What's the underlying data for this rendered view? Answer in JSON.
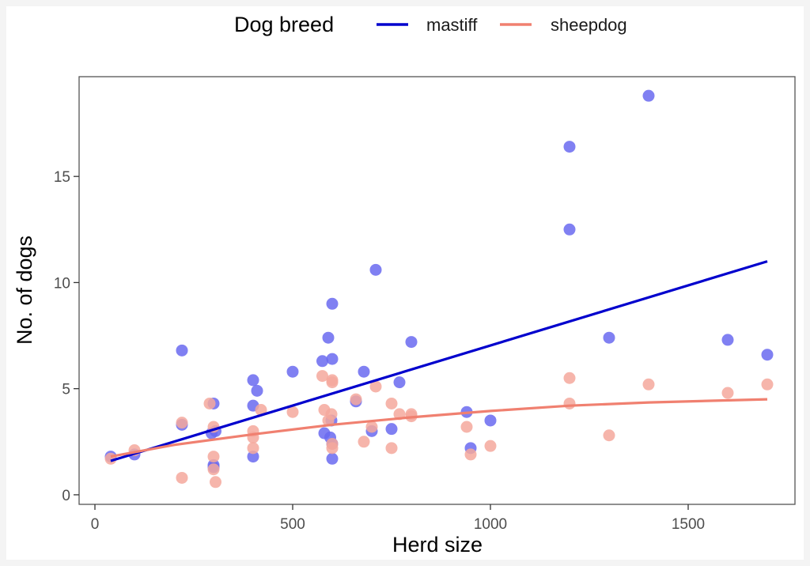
{
  "chart_data": {
    "type": "scatter",
    "title": "",
    "xlabel": "Herd size",
    "ylabel": "No. of dogs",
    "xlim": [
      -40,
      1770
    ],
    "ylim": [
      -0.45,
      19.7
    ],
    "xticks": [
      0,
      500,
      1000,
      1500
    ],
    "yticks": [
      0,
      5,
      10,
      15
    ],
    "xtick_labels": [
      "0",
      "500",
      "1000",
      "1500"
    ],
    "ytick_labels": [
      "0",
      "5",
      "10",
      "15"
    ],
    "grid": false,
    "legend": {
      "title": "Dog breed",
      "position": "top",
      "entries": [
        "mastiff",
        "sheepdog"
      ]
    },
    "series": [
      {
        "name": "mastiff",
        "color": "#0000cd",
        "point_color": "#6a6af0",
        "points": [
          [
            40,
            1.8
          ],
          [
            100,
            1.9
          ],
          [
            220,
            6.8
          ],
          [
            220,
            3.3
          ],
          [
            295,
            2.9
          ],
          [
            300,
            4.3
          ],
          [
            300,
            1.4
          ],
          [
            300,
            1.3
          ],
          [
            305,
            3.0
          ],
          [
            400,
            5.4
          ],
          [
            400,
            4.2
          ],
          [
            400,
            1.8
          ],
          [
            410,
            4.9
          ],
          [
            500,
            5.8
          ],
          [
            575,
            6.3
          ],
          [
            580,
            2.9
          ],
          [
            590,
            7.4
          ],
          [
            595,
            2.7
          ],
          [
            598,
            3.5
          ],
          [
            600,
            9.0
          ],
          [
            600,
            6.4
          ],
          [
            600,
            2.4
          ],
          [
            600,
            1.7
          ],
          [
            660,
            4.4
          ],
          [
            680,
            5.8
          ],
          [
            700,
            3.0
          ],
          [
            710,
            10.6
          ],
          [
            750,
            3.1
          ],
          [
            770,
            5.3
          ],
          [
            800,
            7.2
          ],
          [
            940,
            3.9
          ],
          [
            950,
            2.2
          ],
          [
            1000,
            3.5
          ],
          [
            1200,
            16.4
          ],
          [
            1200,
            12.5
          ],
          [
            1300,
            7.4
          ],
          [
            1400,
            18.8
          ],
          [
            1600,
            7.3
          ],
          [
            1700,
            6.6
          ]
        ],
        "fit": [
          [
            40,
            1.6
          ],
          [
            1700,
            11.0
          ]
        ]
      },
      {
        "name": "sheepdog",
        "color": "#f08070",
        "point_color": "#f5a89c",
        "points": [
          [
            40,
            1.7
          ],
          [
            100,
            2.1
          ],
          [
            220,
            3.4
          ],
          [
            220,
            0.8
          ],
          [
            290,
            4.3
          ],
          [
            300,
            3.2
          ],
          [
            300,
            1.8
          ],
          [
            300,
            1.2
          ],
          [
            305,
            0.6
          ],
          [
            400,
            3.0
          ],
          [
            400,
            2.7
          ],
          [
            400,
            2.2
          ],
          [
            420,
            4.0
          ],
          [
            500,
            3.9
          ],
          [
            575,
            5.6
          ],
          [
            580,
            4.0
          ],
          [
            590,
            3.5
          ],
          [
            598,
            3.8
          ],
          [
            600,
            5.4
          ],
          [
            600,
            5.3
          ],
          [
            600,
            2.4
          ],
          [
            600,
            2.2
          ],
          [
            660,
            4.5
          ],
          [
            680,
            2.5
          ],
          [
            700,
            3.2
          ],
          [
            710,
            5.1
          ],
          [
            750,
            4.3
          ],
          [
            750,
            2.2
          ],
          [
            770,
            3.8
          ],
          [
            800,
            3.8
          ],
          [
            800,
            3.7
          ],
          [
            940,
            3.2
          ],
          [
            950,
            1.9
          ],
          [
            1000,
            2.3
          ],
          [
            1200,
            5.5
          ],
          [
            1200,
            4.3
          ],
          [
            1300,
            2.8
          ],
          [
            1400,
            5.2
          ],
          [
            1600,
            4.8
          ],
          [
            1700,
            5.2
          ]
        ],
        "fit": [
          [
            40,
            1.8
          ],
          [
            200,
            2.35
          ],
          [
            400,
            2.85
          ],
          [
            600,
            3.3
          ],
          [
            800,
            3.65
          ],
          [
            1000,
            3.95
          ],
          [
            1200,
            4.2
          ],
          [
            1400,
            4.35
          ],
          [
            1700,
            4.5
          ]
        ]
      }
    ]
  }
}
